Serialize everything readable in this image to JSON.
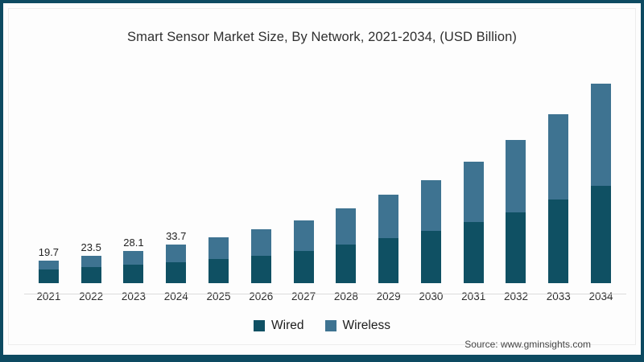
{
  "title": "Smart Sensor Market Size, By Network, 2021-2034, (USD Billion)",
  "source": "Source: www.gminsights.com",
  "colors": {
    "wired": "#0f5063",
    "wireless": "#3e7391",
    "frame_border": "#0d4a61",
    "axis_line": "#dcdcdc",
    "title_text": "#2f2f2f"
  },
  "chart_data": {
    "type": "bar",
    "stacked": true,
    "title": "Smart Sensor Market Size, By Network, 2021-2034, (USD Billion)",
    "unit": "USD Billion",
    "categories": [
      "2021",
      "2022",
      "2023",
      "2024",
      "2025",
      "2026",
      "2027",
      "2028",
      "2029",
      "2030",
      "2031",
      "2032",
      "2033",
      "2034"
    ],
    "series": [
      {
        "name": "Wired",
        "color": "#0f5063",
        "values": [
          11.8,
          13.7,
          15.8,
          18.3,
          21.2,
          24.0,
          28.0,
          33.8,
          39.1,
          45.2,
          53.0,
          61.5,
          72.5,
          85.0
        ]
      },
      {
        "name": "Wireless",
        "color": "#3e7391",
        "values": [
          7.9,
          9.8,
          12.3,
          15.4,
          18.8,
          22.8,
          26.6,
          31.2,
          37.6,
          44.3,
          52.8,
          63.0,
          74.6,
          88.5
        ]
      }
    ],
    "totals": [
      19.7,
      23.5,
      28.1,
      33.7,
      40.0,
      46.8,
      54.6,
      65.0,
      76.7,
      89.5,
      105.8,
      124.5,
      147.1,
      173.5
    ],
    "total_labels": [
      "19.7",
      "23.5",
      "28.1",
      "33.7",
      "",
      "",
      "",
      "",
      "",
      "",
      "",
      "",
      "",
      ""
    ],
    "xlabel": "",
    "ylabel": "USD Billion",
    "ylim": [
      0,
      180
    ],
    "grid": false,
    "legend_position": "bottom"
  }
}
